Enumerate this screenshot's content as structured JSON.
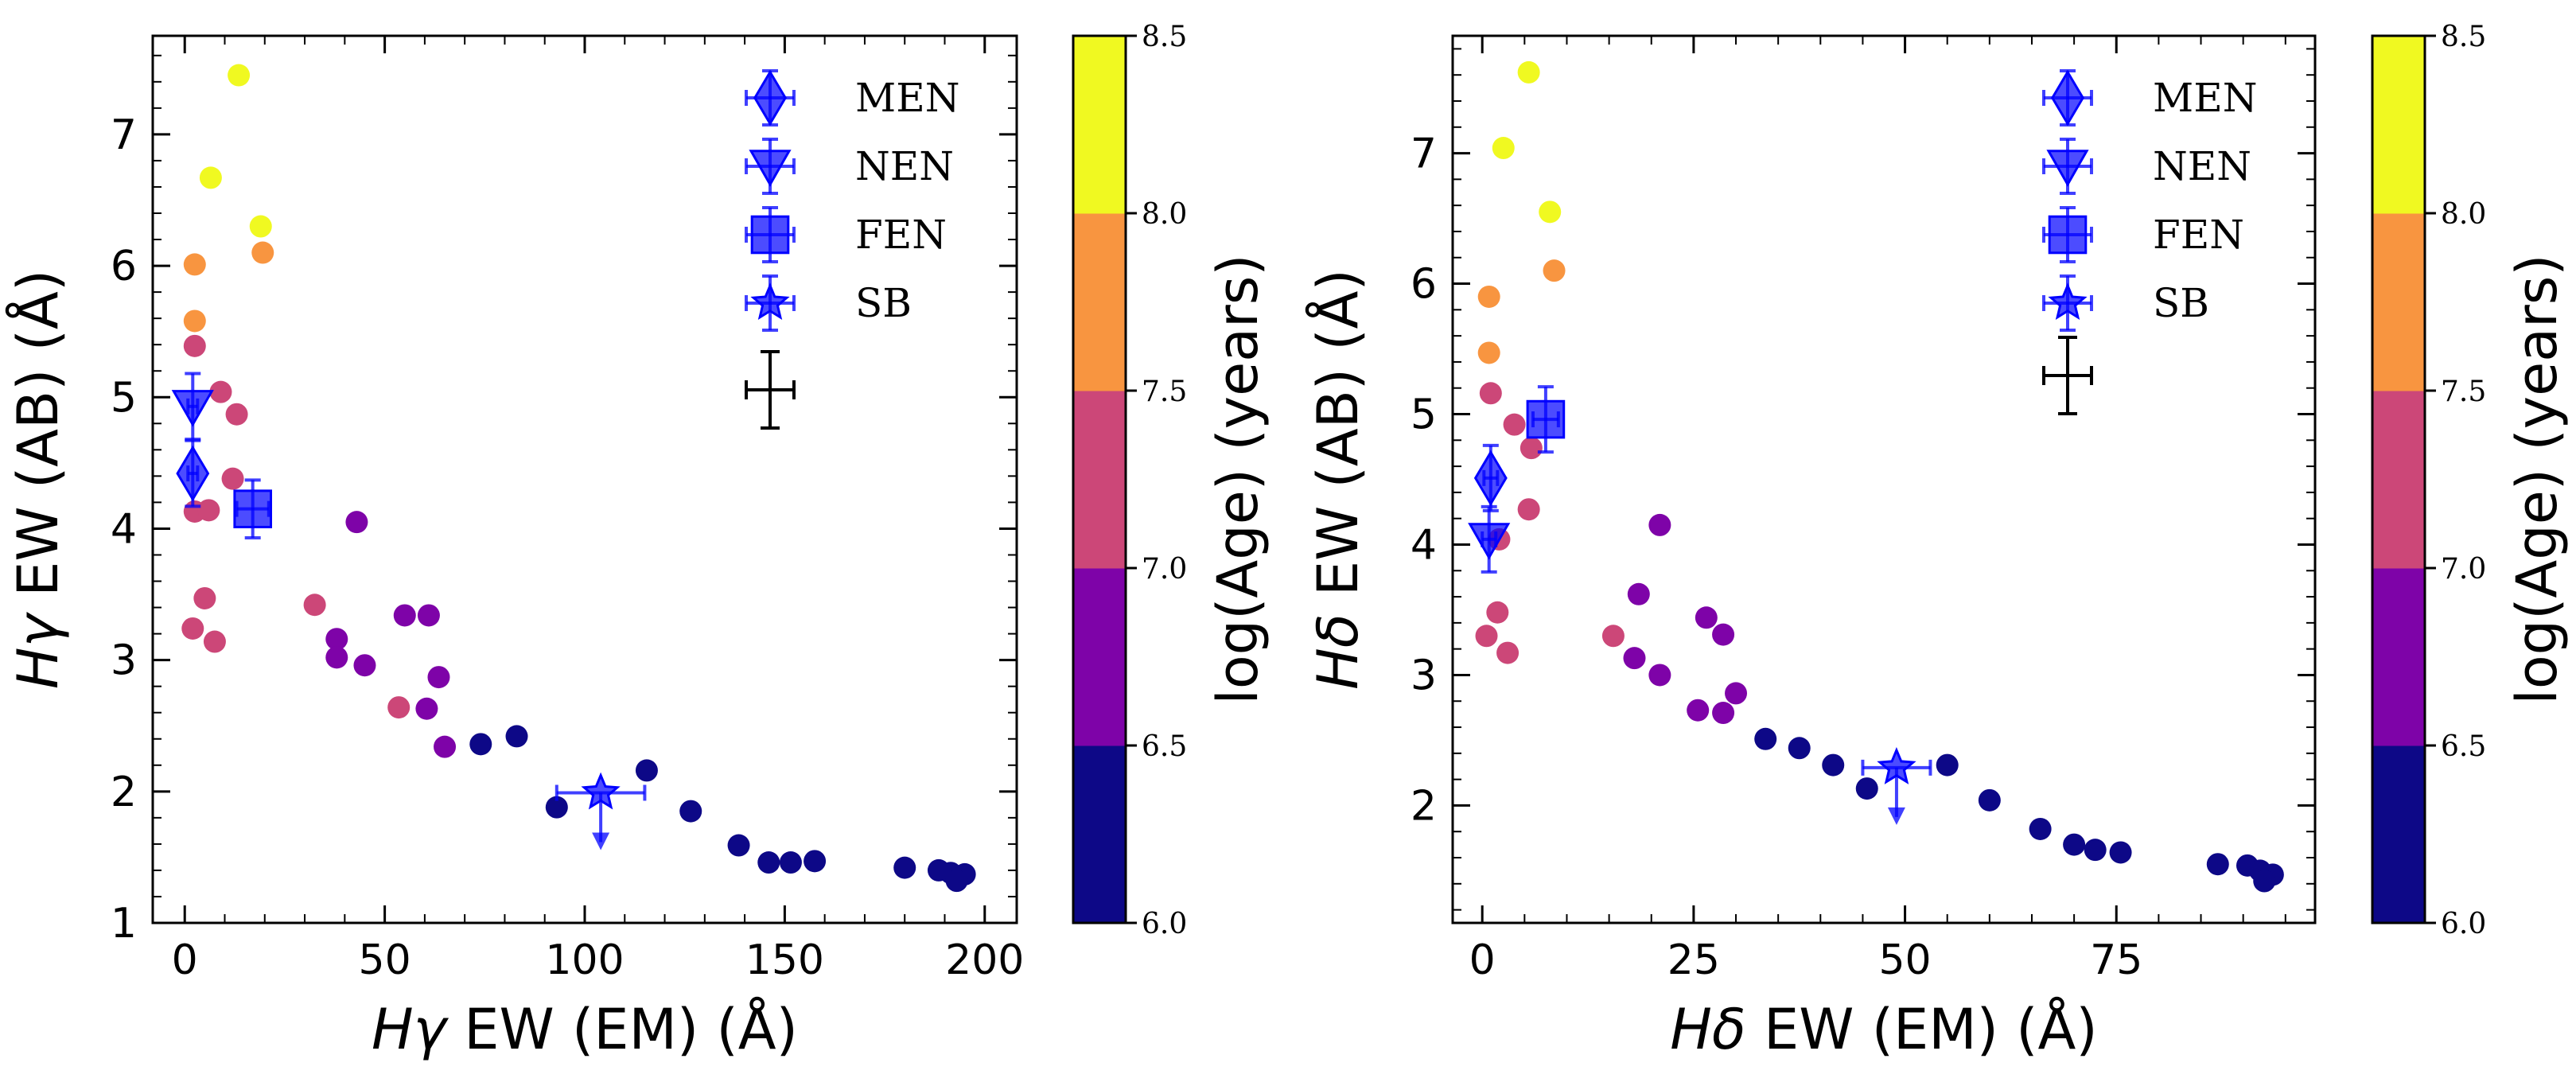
{
  "colors": {
    "marker": "#0000ff",
    "axis": "#000000",
    "bins": [
      "#0d0887",
      "#7e03a8",
      "#cc4778",
      "#f89540",
      "#f0f921"
    ]
  },
  "colorbar": {
    "label": "log(Age) (years)",
    "ticks": [
      "6.0",
      "6.5",
      "7.0",
      "7.5",
      "8.0",
      "8.5"
    ],
    "range": [
      6.0,
      8.5
    ]
  },
  "legend": {
    "entries": [
      "MEN",
      "NEN",
      "FEN",
      "SB"
    ]
  },
  "chart_data": [
    {
      "type": "scatter",
      "xlabel_sym": "Hγ",
      "xlabel_rest": " EW (EM) (Å)",
      "ylabel_sym": "Hγ",
      "ylabel_rest": " EW (AB) (Å)",
      "xlim": [
        -8,
        208
      ],
      "ylim": [
        1.0,
        7.75
      ],
      "xticks": [
        0,
        50,
        100,
        150,
        200
      ],
      "xtick_labels": [
        "0",
        "50",
        "100",
        "150",
        "200"
      ],
      "yticks": [
        1,
        2,
        3,
        4,
        5,
        6,
        7
      ],
      "ytick_labels": [
        "1",
        "2",
        "3",
        "4",
        "5",
        "6",
        "7"
      ],
      "points": [
        [
          13.5,
          7.45,
          8.3
        ],
        [
          6.5,
          6.67,
          8.3
        ],
        [
          19,
          6.3,
          8.2
        ],
        [
          2.5,
          6.01,
          7.8
        ],
        [
          19.5,
          6.1,
          7.8
        ],
        [
          2.5,
          5.58,
          7.6
        ],
        [
          2.5,
          5.39,
          7.3
        ],
        [
          9,
          5.04,
          7.3
        ],
        [
          13,
          4.87,
          7.3
        ],
        [
          12,
          4.38,
          7.3
        ],
        [
          2.5,
          4.13,
          7.3
        ],
        [
          6,
          4.14,
          7.3
        ],
        [
          5,
          3.47,
          7.3
        ],
        [
          2,
          3.24,
          7.3
        ],
        [
          7.5,
          3.14,
          7.3
        ],
        [
          32.5,
          3.42,
          7.2
        ],
        [
          43,
          4.05,
          6.8
        ],
        [
          38,
          3.16,
          6.8
        ],
        [
          38,
          3.02,
          6.8
        ],
        [
          45,
          2.96,
          6.8
        ],
        [
          55,
          3.34,
          6.8
        ],
        [
          61,
          3.34,
          6.8
        ],
        [
          63.5,
          2.87,
          6.8
        ],
        [
          53.5,
          2.64,
          7.1
        ],
        [
          60.5,
          2.63,
          6.8
        ],
        [
          65,
          2.34,
          6.8
        ],
        [
          74,
          2.36,
          6.2
        ],
        [
          83,
          2.42,
          6.2
        ],
        [
          93,
          1.88,
          6.2
        ],
        [
          115.5,
          2.16,
          6.2
        ],
        [
          126.5,
          1.85,
          6.2
        ],
        [
          138.5,
          1.59,
          6.2
        ],
        [
          146,
          1.46,
          6.2
        ],
        [
          151.5,
          1.46,
          6.2
        ],
        [
          157.5,
          1.47,
          6.2
        ],
        [
          180,
          1.42,
          6.2
        ],
        [
          188.5,
          1.4,
          6.2
        ],
        [
          191.5,
          1.38,
          6.2
        ],
        [
          195,
          1.37,
          6.2
        ],
        [
          193,
          1.32,
          6.2
        ]
      ],
      "sources": [
        {
          "name": "MEN",
          "marker": "diamond",
          "x": 2,
          "y": 4.42,
          "xerr": 1.2,
          "yerr": 0.25
        },
        {
          "name": "NEN",
          "marker": "triangle",
          "x": 2,
          "y": 4.93,
          "xerr": 1.2,
          "yerr": 0.25
        },
        {
          "name": "FEN",
          "marker": "square",
          "x": 17,
          "y": 4.15,
          "xerr": 4,
          "yerr": 0.22
        },
        {
          "name": "SB",
          "marker": "star",
          "x": 104,
          "y": 1.99,
          "xerr": 11,
          "yerr": 0,
          "upper_limit": true
        }
      ]
    },
    {
      "type": "scatter",
      "xlabel_sym": "Hδ",
      "xlabel_rest": " EW (EM) (Å)",
      "ylabel_sym": "Hδ",
      "ylabel_rest": " EW (AB) (Å)",
      "xlim": [
        -3.5,
        98.5
      ],
      "ylim": [
        1.1,
        7.9
      ],
      "xticks": [
        0,
        25,
        50,
        75
      ],
      "xtick_labels": [
        "0",
        "25",
        "50",
        "75"
      ],
      "yticks": [
        2,
        3,
        4,
        5,
        6,
        7
      ],
      "ytick_labels": [
        "2",
        "3",
        "4",
        "5",
        "6",
        "7"
      ],
      "points": [
        [
          5.5,
          7.62,
          8.3
        ],
        [
          2.5,
          7.04,
          8.3
        ],
        [
          8,
          6.55,
          8.2
        ],
        [
          0.8,
          5.9,
          7.8
        ],
        [
          8.5,
          6.1,
          7.8
        ],
        [
          0.8,
          5.47,
          7.6
        ],
        [
          1,
          5.16,
          7.3
        ],
        [
          3.8,
          4.92,
          7.3
        ],
        [
          5.8,
          4.74,
          7.3
        ],
        [
          5.5,
          4.27,
          7.3
        ],
        [
          2,
          4.04,
          7.3
        ],
        [
          1.8,
          3.48,
          7.3
        ],
        [
          0.5,
          3.3,
          7.3
        ],
        [
          3,
          3.17,
          7.3
        ],
        [
          15.5,
          3.3,
          7.2
        ],
        [
          21,
          4.15,
          6.8
        ],
        [
          18.5,
          3.62,
          6.8
        ],
        [
          18,
          3.13,
          6.8
        ],
        [
          21,
          3.0,
          6.8
        ],
        [
          26.5,
          3.44,
          6.8
        ],
        [
          28.5,
          3.31,
          6.8
        ],
        [
          30,
          2.86,
          6.8
        ],
        [
          25.5,
          2.73,
          6.8
        ],
        [
          28.5,
          2.71,
          6.8
        ],
        [
          33.5,
          2.51,
          6.2
        ],
        [
          37.5,
          2.44,
          6.2
        ],
        [
          41.5,
          2.31,
          6.2
        ],
        [
          45.5,
          2.13,
          6.2
        ],
        [
          55,
          2.31,
          6.2
        ],
        [
          60,
          2.04,
          6.2
        ],
        [
          66,
          1.82,
          6.2
        ],
        [
          70,
          1.7,
          6.2
        ],
        [
          72.5,
          1.66,
          6.2
        ],
        [
          75.5,
          1.64,
          6.2
        ],
        [
          87,
          1.55,
          6.2
        ],
        [
          90.5,
          1.54,
          6.2
        ],
        [
          92,
          1.5,
          6.2
        ],
        [
          93.5,
          1.47,
          6.2
        ],
        [
          92.5,
          1.42,
          6.2
        ]
      ],
      "sources": [
        {
          "name": "MEN",
          "marker": "diamond",
          "x": 1,
          "y": 4.51,
          "xerr": 0.8,
          "yerr": 0.25
        },
        {
          "name": "NEN",
          "marker": "triangle",
          "x": 0.8,
          "y": 4.04,
          "xerr": 0.8,
          "yerr": 0.25
        },
        {
          "name": "FEN",
          "marker": "square",
          "x": 7.5,
          "y": 4.96,
          "xerr": 1.5,
          "yerr": 0.25
        },
        {
          "name": "SB",
          "marker": "star",
          "x": 49,
          "y": 2.29,
          "xerr": 4,
          "yerr": 0,
          "upper_limit": true
        }
      ]
    }
  ]
}
